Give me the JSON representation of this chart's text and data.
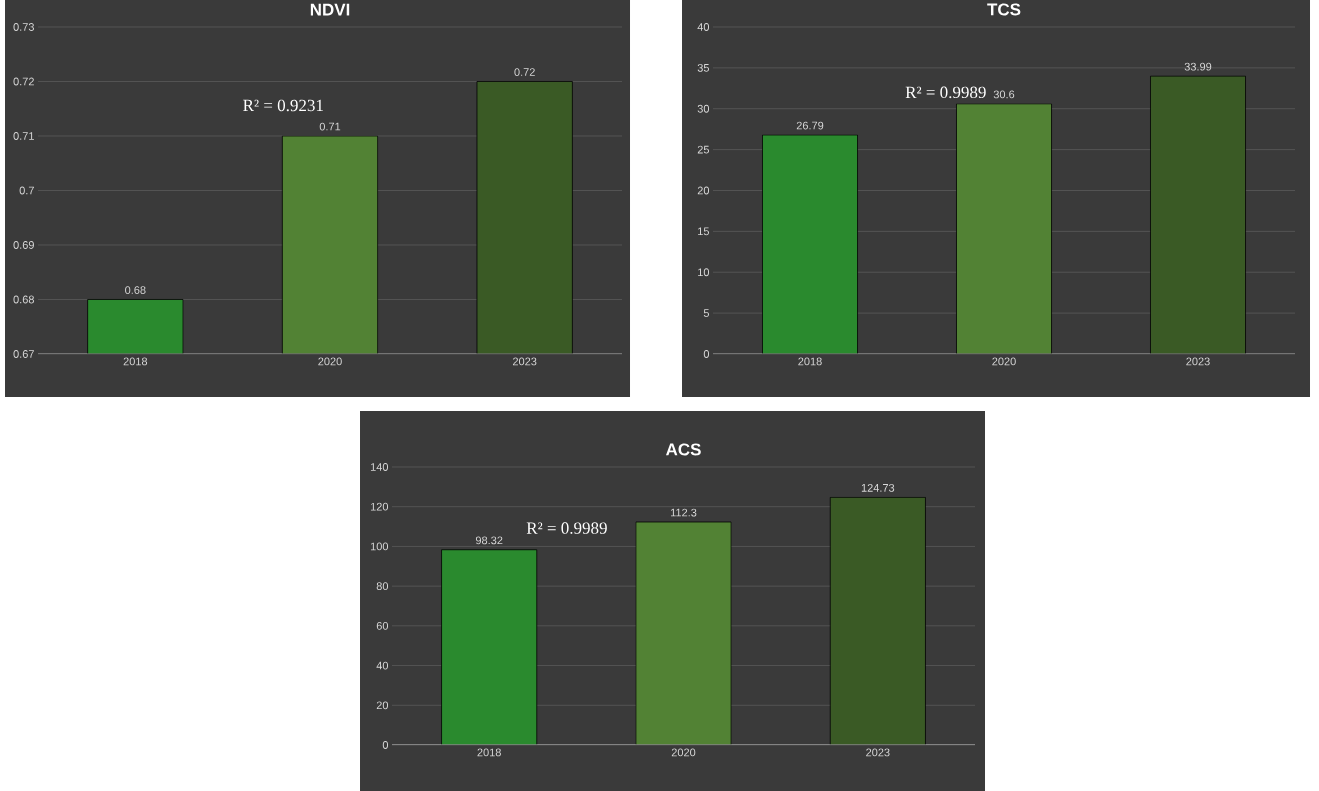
{
  "chart_data": [
    {
      "type": "bar",
      "title": "NDVI",
      "categories": [
        "2018",
        "2020",
        "2023"
      ],
      "values": [
        0.68,
        0.71,
        0.72
      ],
      "colors": [
        "#2a8a2e",
        "#528234",
        "#3a5a25"
      ],
      "ylim": [
        0.67,
        0.73
      ],
      "yticks": [
        0.67,
        0.68,
        0.69,
        0.7,
        0.71,
        0.72,
        0.73
      ],
      "grid": "y",
      "data_labels": true,
      "annotations": [
        "R² = 0.9231"
      ]
    },
    {
      "type": "bar",
      "title": "TCS",
      "categories": [
        "2018",
        "2020",
        "2023"
      ],
      "values": [
        26.79,
        30.6,
        33.99
      ],
      "colors": [
        "#2a8a2e",
        "#528234",
        "#3a5a25"
      ],
      "ylim": [
        0,
        40
      ],
      "yticks": [
        0,
        5,
        10,
        15,
        20,
        25,
        30,
        35,
        40
      ],
      "grid": "y",
      "data_labels": true,
      "annotations": [
        "R² = 0.9989"
      ]
    },
    {
      "type": "bar",
      "title": "ACS",
      "categories": [
        "2018",
        "2020",
        "2023"
      ],
      "values": [
        98.32,
        112.3,
        124.73
      ],
      "colors": [
        "#2a8a2e",
        "#528234",
        "#3a5a25"
      ],
      "ylim": [
        0,
        140
      ],
      "yticks": [
        0,
        20,
        40,
        60,
        80,
        100,
        120,
        140
      ],
      "grid": "y",
      "data_labels": true,
      "annotations": [
        "R² = 0.9989"
      ]
    }
  ]
}
